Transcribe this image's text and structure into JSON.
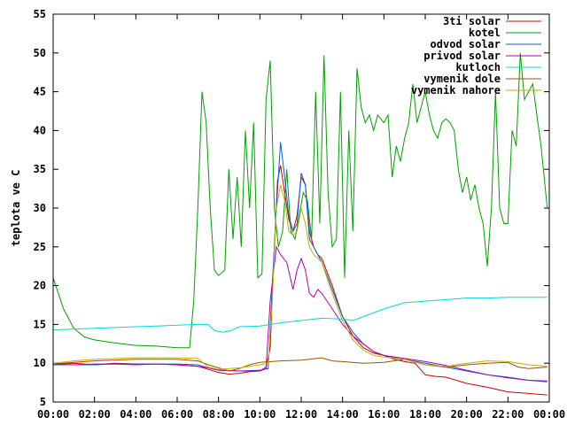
{
  "chart_data": {
    "type": "line",
    "title": "",
    "xlabel": "",
    "ylabel": "teplota ve C",
    "xlim": [
      0,
      24
    ],
    "ylim": [
      5,
      55
    ],
    "x_ticks": [
      "00:00",
      "02:00",
      "04:00",
      "06:00",
      "08:00",
      "10:00",
      "12:00",
      "14:00",
      "16:00",
      "18:00",
      "20:00",
      "22:00",
      "00:00"
    ],
    "y_ticks": [
      5,
      10,
      15,
      20,
      25,
      30,
      35,
      40,
      45,
      50,
      55
    ],
    "legend_position": "top-right",
    "series": [
      {
        "name": "3ti solar",
        "color": "#d00000",
        "points": [
          [
            0,
            9.9
          ],
          [
            1,
            10.0
          ],
          [
            2,
            9.8
          ],
          [
            3,
            10.0
          ],
          [
            4,
            9.9
          ],
          [
            5,
            9.9
          ],
          [
            6,
            9.8
          ],
          [
            7,
            9.6
          ],
          [
            7.5,
            9.2
          ],
          [
            8,
            8.8
          ],
          [
            8.5,
            8.6
          ],
          [
            9,
            8.7
          ],
          [
            9.5,
            8.9
          ],
          [
            10,
            9.0
          ],
          [
            10.3,
            9.5
          ],
          [
            10.5,
            12
          ],
          [
            10.7,
            25
          ],
          [
            10.85,
            33.5
          ],
          [
            11,
            35.5
          ],
          [
            11.2,
            32
          ],
          [
            11.4,
            28.5
          ],
          [
            11.6,
            27
          ],
          [
            11.8,
            29
          ],
          [
            12,
            34
          ],
          [
            12.2,
            33
          ],
          [
            12.4,
            27
          ],
          [
            12.6,
            25
          ],
          [
            12.8,
            24
          ],
          [
            13,
            23.5
          ],
          [
            13.5,
            20
          ],
          [
            14,
            16
          ],
          [
            14.5,
            13.5
          ],
          [
            15,
            12
          ],
          [
            15.5,
            11.3
          ],
          [
            16,
            11
          ],
          [
            16.5,
            10.5
          ],
          [
            17,
            10.2
          ],
          [
            17.5,
            10
          ],
          [
            18,
            8.5
          ],
          [
            18.5,
            8.3
          ],
          [
            19,
            8.2
          ],
          [
            19.5,
            7.8
          ],
          [
            20,
            7.4
          ],
          [
            21,
            6.9
          ],
          [
            22,
            6.3
          ],
          [
            23,
            6.1
          ],
          [
            23.9,
            5.9
          ]
        ]
      },
      {
        "name": "kotel",
        "color": "#00a000",
        "points": [
          [
            0,
            21
          ],
          [
            0.5,
            17
          ],
          [
            1,
            14.5
          ],
          [
            1.5,
            13.4
          ],
          [
            2,
            13
          ],
          [
            3,
            12.6
          ],
          [
            4,
            12.3
          ],
          [
            5,
            12.2
          ],
          [
            6,
            12
          ],
          [
            6.6,
            12
          ],
          [
            6.8,
            18
          ],
          [
            7,
            30
          ],
          [
            7.2,
            45
          ],
          [
            7.4,
            41
          ],
          [
            7.6,
            30
          ],
          [
            7.8,
            22
          ],
          [
            8,
            21.3
          ],
          [
            8.3,
            22
          ],
          [
            8.5,
            35
          ],
          [
            8.7,
            26
          ],
          [
            8.9,
            34
          ],
          [
            9.1,
            25
          ],
          [
            9.3,
            40
          ],
          [
            9.5,
            30
          ],
          [
            9.7,
            41
          ],
          [
            9.9,
            21
          ],
          [
            10.1,
            21.5
          ],
          [
            10.3,
            44
          ],
          [
            10.5,
            49
          ],
          [
            10.7,
            30
          ],
          [
            10.9,
            25
          ],
          [
            11.1,
            27
          ],
          [
            11.3,
            35
          ],
          [
            11.5,
            27
          ],
          [
            11.7,
            26
          ],
          [
            11.9,
            29
          ],
          [
            12.1,
            32
          ],
          [
            12.3,
            31
          ],
          [
            12.5,
            26
          ],
          [
            12.7,
            45
          ],
          [
            12.9,
            28
          ],
          [
            13.1,
            49.7
          ],
          [
            13.3,
            32
          ],
          [
            13.5,
            25
          ],
          [
            13.7,
            26
          ],
          [
            13.9,
            45
          ],
          [
            14.1,
            21
          ],
          [
            14.3,
            40
          ],
          [
            14.5,
            27
          ],
          [
            14.7,
            48
          ],
          [
            14.9,
            43
          ],
          [
            15.1,
            41
          ],
          [
            15.3,
            42
          ],
          [
            15.5,
            40
          ],
          [
            15.7,
            42
          ],
          [
            16,
            41
          ],
          [
            16.2,
            42
          ],
          [
            16.4,
            34
          ],
          [
            16.6,
            38
          ],
          [
            16.8,
            36
          ],
          [
            17,
            39
          ],
          [
            17.2,
            41
          ],
          [
            17.4,
            46
          ],
          [
            17.6,
            41
          ],
          [
            17.8,
            43
          ],
          [
            18,
            45
          ],
          [
            18.2,
            42
          ],
          [
            18.4,
            40
          ],
          [
            18.6,
            39
          ],
          [
            18.8,
            41
          ],
          [
            19,
            41.5
          ],
          [
            19.2,
            41
          ],
          [
            19.4,
            40
          ],
          [
            19.6,
            35
          ],
          [
            19.8,
            32
          ],
          [
            20,
            34
          ],
          [
            20.2,
            31
          ],
          [
            20.4,
            33
          ],
          [
            20.6,
            30
          ],
          [
            20.8,
            28
          ],
          [
            21,
            22.5
          ],
          [
            21.2,
            30
          ],
          [
            21.4,
            45
          ],
          [
            21.6,
            30
          ],
          [
            21.8,
            28
          ],
          [
            22,
            28
          ],
          [
            22.2,
            40
          ],
          [
            22.4,
            38
          ],
          [
            22.6,
            50
          ],
          [
            22.8,
            44
          ],
          [
            23,
            45
          ],
          [
            23.2,
            46
          ],
          [
            23.4,
            42
          ],
          [
            23.6,
            38
          ],
          [
            23.9,
            30
          ]
        ]
      },
      {
        "name": "odvod solar",
        "color": "#0060e0",
        "points": [
          [
            0,
            9.8
          ],
          [
            1,
            9.8
          ],
          [
            2,
            9.8
          ],
          [
            3,
            9.9
          ],
          [
            4,
            9.9
          ],
          [
            5,
            9.9
          ],
          [
            6,
            9.9
          ],
          [
            7,
            9.8
          ],
          [
            7.5,
            9.4
          ],
          [
            8,
            9.1
          ],
          [
            9,
            9.0
          ],
          [
            10,
            9.1
          ],
          [
            10.4,
            9.3
          ],
          [
            10.6,
            20
          ],
          [
            10.8,
            30
          ],
          [
            11,
            38.5
          ],
          [
            11.2,
            34
          ],
          [
            11.4,
            29
          ],
          [
            11.6,
            27
          ],
          [
            11.8,
            28
          ],
          [
            12,
            34.5
          ],
          [
            12.2,
            33
          ],
          [
            12.4,
            26
          ],
          [
            12.6,
            25
          ],
          [
            12.8,
            24
          ],
          [
            13,
            23
          ],
          [
            13.5,
            19.5
          ],
          [
            14,
            16
          ],
          [
            14.5,
            14
          ],
          [
            15,
            12.5
          ],
          [
            15.5,
            11.5
          ],
          [
            16,
            11
          ],
          [
            17,
            10.5
          ],
          [
            18,
            10
          ],
          [
            19,
            9.5
          ],
          [
            20,
            9
          ],
          [
            21,
            8.5
          ],
          [
            22,
            8.2
          ],
          [
            23,
            7.8
          ],
          [
            23.9,
            7.6
          ]
        ]
      },
      {
        "name": "privod solar",
        "color": "#b000b0",
        "points": [
          [
            0,
            9.9
          ],
          [
            1,
            9.8
          ],
          [
            2,
            9.9
          ],
          [
            3,
            9.9
          ],
          [
            4,
            9.8
          ],
          [
            5,
            9.9
          ],
          [
            6,
            9.8
          ],
          [
            7,
            9.6
          ],
          [
            7.5,
            9.4
          ],
          [
            8,
            9.1
          ],
          [
            9,
            9.0
          ],
          [
            10,
            9.0
          ],
          [
            10.3,
            9.3
          ],
          [
            10.5,
            18
          ],
          [
            10.8,
            25
          ],
          [
            11,
            24
          ],
          [
            11.3,
            23
          ],
          [
            11.6,
            19.5
          ],
          [
            11.8,
            22
          ],
          [
            12,
            23.5
          ],
          [
            12.2,
            22
          ],
          [
            12.4,
            19
          ],
          [
            12.6,
            18.5
          ],
          [
            12.8,
            19.5
          ],
          [
            13,
            19
          ],
          [
            13.5,
            17
          ],
          [
            14,
            15
          ],
          [
            14.5,
            13.5
          ],
          [
            15,
            12.5
          ],
          [
            15.5,
            11.5
          ],
          [
            16,
            11
          ],
          [
            17,
            10.6
          ],
          [
            18,
            10.2
          ],
          [
            19,
            9.7
          ],
          [
            20,
            9.1
          ],
          [
            21,
            8.5
          ],
          [
            22,
            8.1
          ],
          [
            23,
            7.8
          ],
          [
            23.9,
            7.7
          ]
        ]
      },
      {
        "name": "kutloch",
        "color": "#00d8d8",
        "points": [
          [
            0,
            14.3
          ],
          [
            1,
            14.4
          ],
          [
            2,
            14.5
          ],
          [
            3,
            14.6
          ],
          [
            4,
            14.7
          ],
          [
            5,
            14.8
          ],
          [
            6,
            14.9
          ],
          [
            7,
            15
          ],
          [
            7.5,
            15
          ],
          [
            7.8,
            14.2
          ],
          [
            8.2,
            14
          ],
          [
            8.6,
            14.2
          ],
          [
            9,
            14.7
          ],
          [
            10,
            14.8
          ],
          [
            11,
            15.2
          ],
          [
            12,
            15.5
          ],
          [
            13,
            15.8
          ],
          [
            14,
            15.7
          ],
          [
            14.5,
            15.5
          ],
          [
            15,
            16
          ],
          [
            16,
            17
          ],
          [
            17,
            17.8
          ],
          [
            18,
            18
          ],
          [
            19,
            18.2
          ],
          [
            20,
            18.4
          ],
          [
            21,
            18.4
          ],
          [
            22,
            18.5
          ],
          [
            23,
            18.5
          ],
          [
            23.9,
            18.5
          ]
        ]
      },
      {
        "name": "vymenik dole",
        "color": "#a05000",
        "points": [
          [
            0,
            9.9
          ],
          [
            1,
            10.1
          ],
          [
            2,
            10.3
          ],
          [
            3,
            10.4
          ],
          [
            4,
            10.5
          ],
          [
            5,
            10.5
          ],
          [
            6,
            10.5
          ],
          [
            7,
            10.3
          ],
          [
            7.5,
            9.8
          ],
          [
            8,
            9.4
          ],
          [
            8.5,
            9.0
          ],
          [
            9,
            9.3
          ],
          [
            9.5,
            9.8
          ],
          [
            10,
            10.1
          ],
          [
            11,
            10.3
          ],
          [
            12,
            10.4
          ],
          [
            13,
            10.7
          ],
          [
            13.5,
            10.3
          ],
          [
            14,
            10.2
          ],
          [
            15,
            10.0
          ],
          [
            16,
            10.1
          ],
          [
            17,
            10.5
          ],
          [
            18,
            9.8
          ],
          [
            19,
            9.5
          ],
          [
            20,
            9.8
          ],
          [
            21,
            10.0
          ],
          [
            22,
            10.1
          ],
          [
            22.5,
            9.5
          ],
          [
            23,
            9.3
          ],
          [
            23.9,
            9.5
          ]
        ]
      },
      {
        "name": "vymenik nahore",
        "color": "#c0b000",
        "points": [
          [
            0,
            10.0
          ],
          [
            1,
            10.3
          ],
          [
            2,
            10.5
          ],
          [
            3,
            10.6
          ],
          [
            4,
            10.7
          ],
          [
            5,
            10.7
          ],
          [
            6,
            10.7
          ],
          [
            7,
            10.6
          ],
          [
            7.5,
            9.5
          ],
          [
            8,
            9.2
          ],
          [
            9,
            9.4
          ],
          [
            10,
            9.8
          ],
          [
            10.4,
            10
          ],
          [
            10.6,
            18
          ],
          [
            10.8,
            30
          ],
          [
            11,
            33
          ],
          [
            11.2,
            31
          ],
          [
            11.4,
            27
          ],
          [
            11.6,
            26.5
          ],
          [
            11.8,
            27
          ],
          [
            12,
            30
          ],
          [
            12.2,
            28
          ],
          [
            12.4,
            25
          ],
          [
            12.6,
            24
          ],
          [
            12.8,
            23.5
          ],
          [
            13,
            23
          ],
          [
            13.5,
            19
          ],
          [
            14,
            15.5
          ],
          [
            14.5,
            13
          ],
          [
            15,
            11.7
          ],
          [
            15.5,
            11
          ],
          [
            16,
            10.8
          ],
          [
            17,
            10.5
          ],
          [
            18,
            9.8
          ],
          [
            19,
            9.6
          ],
          [
            20,
            10
          ],
          [
            21,
            10.3
          ],
          [
            22,
            10.2
          ],
          [
            23,
            9.8
          ],
          [
            23.9,
            9.6
          ]
        ]
      }
    ]
  }
}
